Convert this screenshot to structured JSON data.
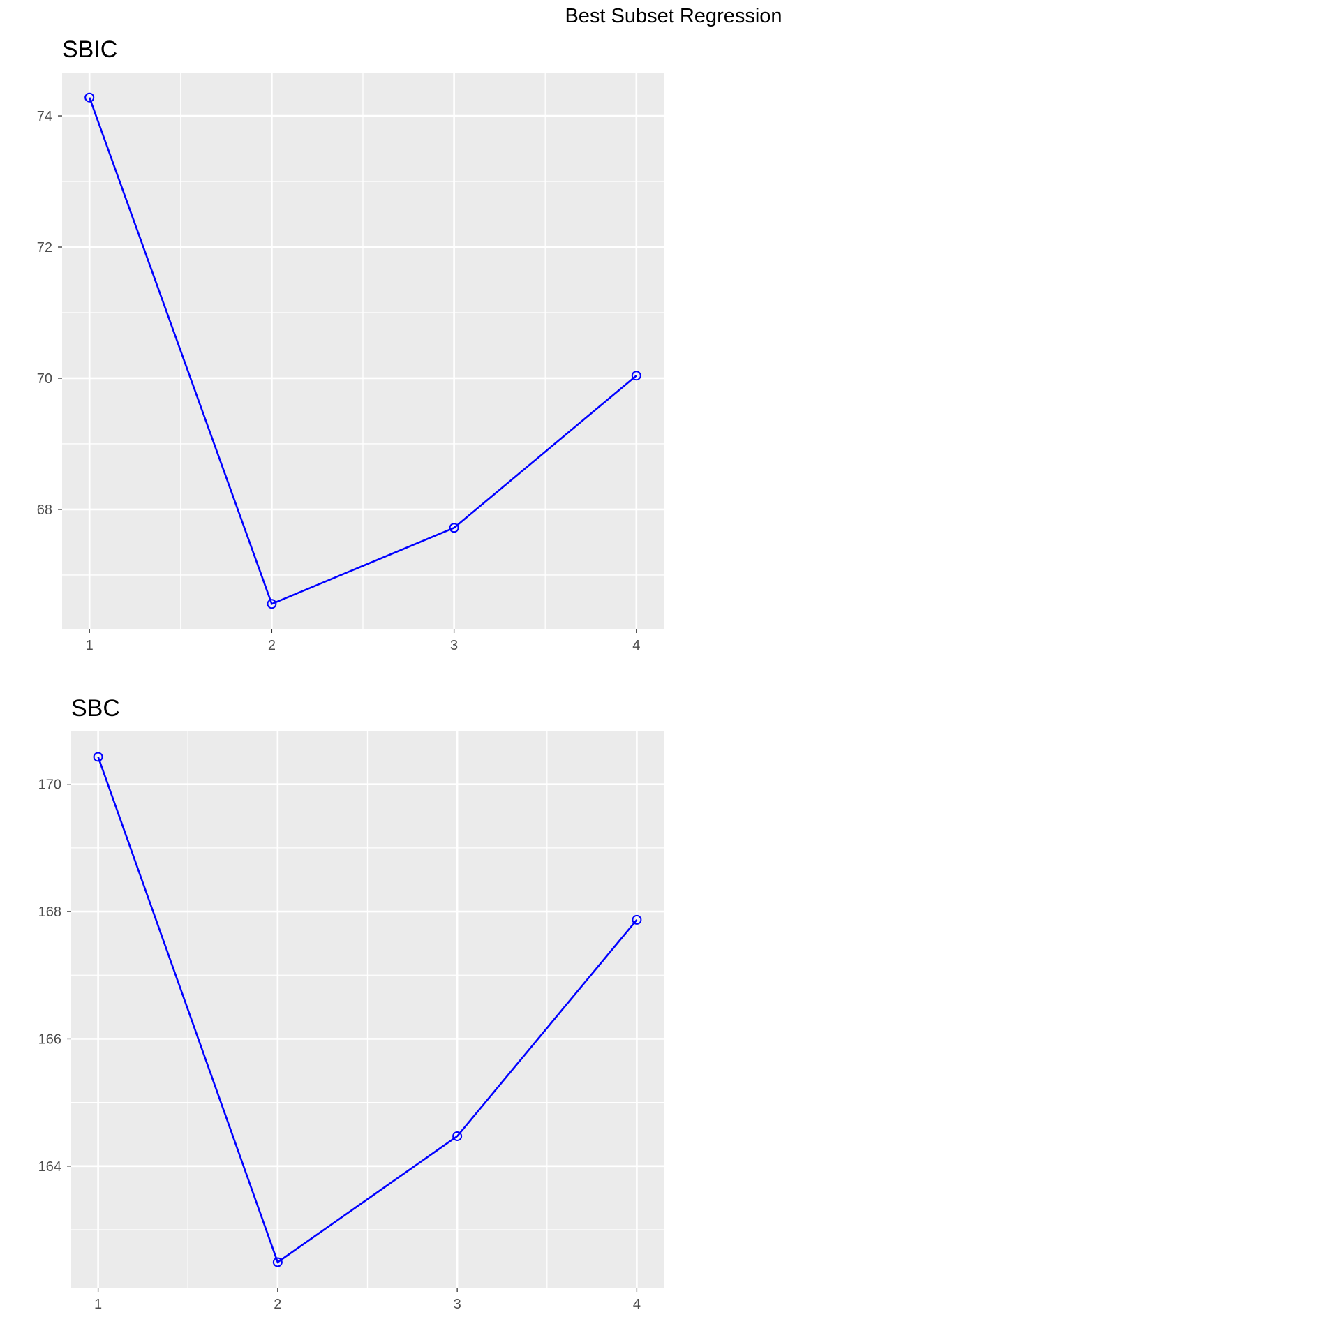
{
  "figure_title": "Best Subset Regression",
  "colors": {
    "series": "#0000ff",
    "panel_background": "#ebebeb",
    "grid": "#ffffff",
    "tick_text": "#4d4d4d"
  },
  "chart_data": [
    {
      "type": "line",
      "title": "SBIC",
      "xlabel": "",
      "ylabel": "",
      "x": [
        1,
        2,
        3,
        4
      ],
      "values": [
        74.28,
        66.56,
        67.72,
        70.04
      ],
      "x_ticks": [
        1,
        2,
        3,
        4
      ],
      "y_ticks": [
        68,
        70,
        72,
        74
      ],
      "x_tick_labels": [
        "1",
        "2",
        "3",
        "4"
      ],
      "y_tick_labels": [
        "68",
        "70",
        "72",
        "74"
      ],
      "xlim": [
        0.85,
        4.15
      ],
      "ylim": [
        66.18,
        74.66
      ],
      "grid": true,
      "markers": "open-circle"
    },
    {
      "type": "line",
      "title": "SBC",
      "xlabel": "",
      "ylabel": "",
      "x": [
        1,
        2,
        3,
        4
      ],
      "values": [
        170.43,
        162.49,
        164.47,
        167.87
      ],
      "x_ticks": [
        1,
        2,
        3,
        4
      ],
      "y_ticks": [
        164,
        166,
        168,
        170
      ],
      "x_tick_labels": [
        "1",
        "2",
        "3",
        "4"
      ],
      "y_tick_labels": [
        "164",
        "166",
        "168",
        "170"
      ],
      "xlim": [
        0.85,
        4.15
      ],
      "ylim": [
        162.09,
        170.83
      ],
      "grid": true,
      "markers": "open-circle"
    }
  ]
}
